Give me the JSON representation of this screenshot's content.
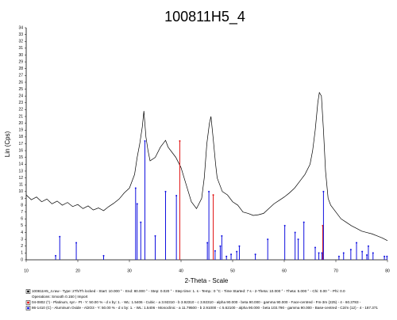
{
  "chart_data": {
    "type": "line",
    "title": "100811H5_4",
    "x_label": "2-Theta - Scale",
    "y_label": "Lin (Cps)",
    "xlim": [
      10,
      80
    ],
    "ylim": [
      0,
      34
    ],
    "xticks": [
      10,
      20,
      30,
      40,
      50,
      60,
      70,
      80
    ],
    "yticks": [
      0,
      1,
      2,
      3,
      4,
      5,
      6,
      7,
      8,
      9,
      10,
      11,
      12,
      13,
      14,
      15,
      16,
      17,
      18,
      19,
      20,
      21,
      22,
      23,
      24,
      25,
      26,
      27,
      28,
      29,
      30,
      31,
      32,
      33,
      34
    ],
    "series": [
      {
        "name": "100811H5_4.raw - Type: 2Th/Th locked - Start: 10.000 ° - End: 80.000 ° - Step: 0.020 ° - Step time: 1. s - Temp.: 0 °C - Time Started: 7 s - 2-Theta: 10.000 ° - Theta: 5.000 ° - Chi: 0.00 ° - Phi: 0.0",
        "operations": "Operations: Smooth 0.150 | Import",
        "type": "line",
        "color": "#000000",
        "x": [
          10,
          11,
          12,
          13,
          14,
          15,
          16,
          17,
          18,
          19,
          20,
          21,
          22,
          23,
          24,
          25,
          26,
          27,
          28,
          29,
          30,
          31,
          31.5,
          32,
          32.5,
          32.8,
          33.2,
          33.6,
          34,
          35,
          36,
          37,
          37.5,
          38,
          39,
          40,
          41,
          42,
          43,
          44,
          44.5,
          45,
          45.5,
          45.8,
          46.2,
          46.7,
          47,
          48,
          49,
          50,
          51,
          52,
          53,
          54,
          55,
          56,
          57,
          58,
          59,
          60,
          61,
          62,
          63,
          64,
          65,
          65.5,
          66,
          66.5,
          66.8,
          67.2,
          67.6,
          68,
          68.5,
          69,
          70,
          71,
          72,
          73,
          74,
          75,
          76,
          77,
          78,
          79,
          80
        ],
        "values": [
          9.5,
          8.8,
          9.2,
          8.5,
          8.9,
          8.2,
          8.6,
          8.0,
          8.4,
          7.8,
          8.1,
          7.5,
          7.9,
          7.3,
          7.6,
          7.2,
          7.8,
          8.3,
          8.9,
          9.8,
          10.5,
          12.5,
          15,
          17,
          19.5,
          21.8,
          18,
          16,
          14.5,
          15,
          16.5,
          17.5,
          16.5,
          16,
          15,
          13.5,
          11,
          8.5,
          7.5,
          9,
          12,
          17,
          20,
          21,
          18,
          14,
          12,
          10,
          9.5,
          8.5,
          8,
          7,
          6.8,
          6.5,
          6.6,
          6.8,
          7.5,
          8.2,
          8.7,
          9.2,
          9.8,
          10.5,
          11.5,
          12.5,
          14,
          16,
          19,
          23,
          24.5,
          24,
          19,
          13,
          9,
          8,
          7,
          6,
          5.5,
          5,
          4.6,
          4.2,
          4,
          3.8,
          3.5,
          3.2,
          2.8
        ]
      },
      {
        "name": "04-0802 (*) - Platinum, syn - Pt - Y: 50.00 % - d x by: 1. - WL: 1.5406 - Cubic - a 3.92310 - b 3.92310 - c 3.92310 - alpha 90.000 - beta 90.000 - gamma 90.000 - Face-centred - Fm-3m (225) - 4 - 60.3783 -",
        "type": "stem",
        "color": "#e01010",
        "x": [
          39.76,
          46.24,
          67.45
        ],
        "values": [
          17.4,
          9.5,
          5
        ]
      },
      {
        "name": "86-1410 (C) - Aluminum Oxide - Al2O3 - Y: 50.00 % - d x by: 1. - WL: 1.5406 - Monoclinic - a 11.79500 - b 2.91000 - c 5.62100 - alpha 90.000 - beta 103.790 - gamma 90.000 - Base-centred - C2/m (12) - 4 - 187.371",
        "type": "stem",
        "color": "#1010e0",
        "x": [
          15.7,
          16.5,
          19.7,
          25.0,
          31.2,
          31.5,
          32.2,
          33.0,
          35.0,
          37.0,
          39.1,
          45.1,
          45.4,
          46.6,
          47.6,
          47.9,
          48.8,
          49.7,
          50.8,
          51.3,
          54.4,
          56.8,
          60.1,
          62.1,
          62.7,
          63.8,
          66.0,
          66.7,
          67.3,
          67.6,
          70.6,
          71.5,
          72.9,
          74.0,
          75.1,
          76.0,
          76.3,
          77.2,
          79.4,
          79.9
        ],
        "values": [
          0.6,
          3.4,
          2.5,
          0.6,
          10.5,
          8.2,
          5.5,
          17.4,
          3.5,
          10,
          9.4,
          2.5,
          10,
          1.3,
          2,
          3.5,
          0.5,
          0.8,
          1.2,
          2,
          0.8,
          3,
          5,
          4,
          3,
          5.5,
          1.8,
          1,
          1,
          10,
          0.5,
          1,
          1.5,
          2.5,
          1.2,
          0.7,
          2,
          1,
          0.5,
          0.5
        ]
      }
    ]
  }
}
